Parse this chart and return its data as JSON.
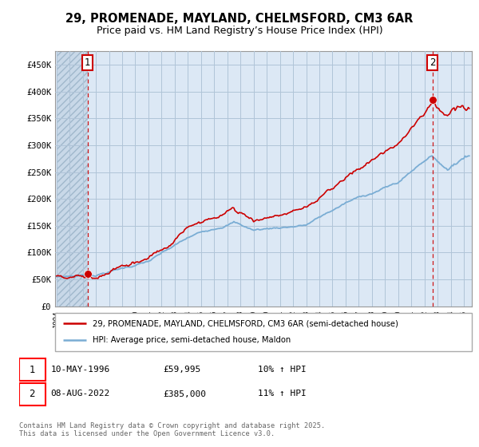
{
  "title_line1": "29, PROMENADE, MAYLAND, CHELMSFORD, CM3 6AR",
  "title_line2": "Price paid vs. HM Land Registry’s House Price Index (HPI)",
  "ylim": [
    0,
    475000
  ],
  "yticks": [
    0,
    50000,
    100000,
    150000,
    200000,
    250000,
    300000,
    350000,
    400000,
    450000
  ],
  "ytick_labels": [
    "£0",
    "£50K",
    "£100K",
    "£150K",
    "£200K",
    "£250K",
    "£300K",
    "£350K",
    "£400K",
    "£450K"
  ],
  "x_start_year": 1994,
  "x_end_year": 2025,
  "hpi_color": "#7aadd4",
  "price_color": "#cc0000",
  "dashed_line_color": "#cc0000",
  "bg_color": "#dce8f5",
  "hatch_color": "#c8d8e8",
  "grid_color": "#b0c4d8",
  "point1_year": 1996.36,
  "point1_price": 59995,
  "point2_year": 2022.6,
  "point2_price": 385000,
  "legend_label1": "29, PROMENADE, MAYLAND, CHELMSFORD, CM3 6AR (semi-detached house)",
  "legend_label2": "HPI: Average price, semi-detached house, Maldon",
  "note1_date": "10-MAY-1996",
  "note1_price": "£59,995",
  "note1_hpi": "10% ↑ HPI",
  "note2_date": "08-AUG-2022",
  "note2_price": "£385,000",
  "note2_hpi": "11% ↑ HPI",
  "footer": "Contains HM Land Registry data © Crown copyright and database right 2025.\nThis data is licensed under the Open Government Licence v3.0."
}
